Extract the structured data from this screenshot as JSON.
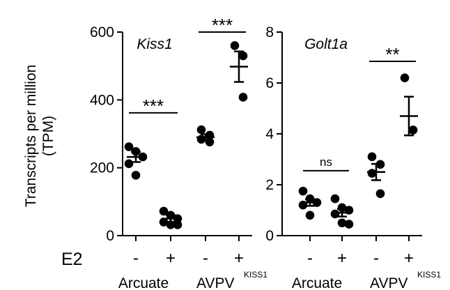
{
  "figure": {
    "ylabel_line1": "Transcripts per million",
    "ylabel_line2": "(TPM)",
    "treatment_axis_label": "E2",
    "group_labels": [
      {
        "main": "Arcuate",
        "sup": ""
      },
      {
        "main": "AVPV",
        "sup": "KISS1"
      }
    ]
  },
  "chart_data": [
    {
      "type": "scatter",
      "title": "Kiss1",
      "ylabel": "Transcripts per million (TPM)",
      "ylim": [
        0,
        600
      ],
      "yticks": [
        0,
        200,
        400,
        600
      ],
      "categories": [
        "-",
        "+",
        "-",
        "+"
      ],
      "groups": [
        "Arcuate",
        "Arcuate",
        "AVPV KISS1",
        "AVPV KISS1"
      ],
      "treatment": "E2",
      "series": [
        {
          "name": "Arcuate E2-",
          "points": [
            262,
            248,
            232,
            212,
            178
          ],
          "mean": 232,
          "sem": 15
        },
        {
          "name": "Arcuate E2+",
          "points": [
            72,
            60,
            50,
            40,
            32,
            32
          ],
          "mean": 50,
          "sem": 10
        },
        {
          "name": "AVPV KISS1 E2-",
          "points": [
            312,
            296,
            284,
            276
          ],
          "mean": 290,
          "sem": 9
        },
        {
          "name": "AVPV KISS1 E2+",
          "points": [
            560,
            530,
            408
          ],
          "mean": 498,
          "sem": 45
        }
      ],
      "significance": [
        {
          "between": [
            0,
            1
          ],
          "label": "***",
          "y": 362
        },
        {
          "between": [
            2,
            3
          ],
          "label": "***",
          "y": 600
        }
      ]
    },
    {
      "type": "scatter",
      "title": "Golt1a",
      "ylabel": "",
      "ylim": [
        0,
        8
      ],
      "yticks": [
        0,
        2,
        4,
        6,
        8
      ],
      "categories": [
        "-",
        "+",
        "-",
        "+"
      ],
      "groups": [
        "Arcuate",
        "Arcuate",
        "AVPV KISS1",
        "AVPV KISS1"
      ],
      "treatment": "E2",
      "series": [
        {
          "name": "Arcuate E2-",
          "points": [
            1.75,
            1.45,
            1.3,
            1.2,
            0.8
          ],
          "mean": 1.3,
          "sem": 0.13
        },
        {
          "name": "Arcuate E2+",
          "points": [
            1.45,
            1.1,
            1.0,
            0.85,
            0.5,
            0.45
          ],
          "mean": 0.9,
          "sem": 0.15
        },
        {
          "name": "AVPV KISS1 E2-",
          "points": [
            3.1,
            2.8,
            2.45,
            1.65
          ],
          "mean": 2.5,
          "sem": 0.32
        },
        {
          "name": "AVPV KISS1 E2+",
          "points": [
            6.2,
            4.15,
            4.15
          ],
          "mean": 4.7,
          "sem": 0.76
        }
      ],
      "significance": [
        {
          "between": [
            0,
            1
          ],
          "label": "ns",
          "y": 2.55
        },
        {
          "between": [
            2,
            3
          ],
          "label": "**",
          "y": 6.85
        }
      ]
    }
  ]
}
